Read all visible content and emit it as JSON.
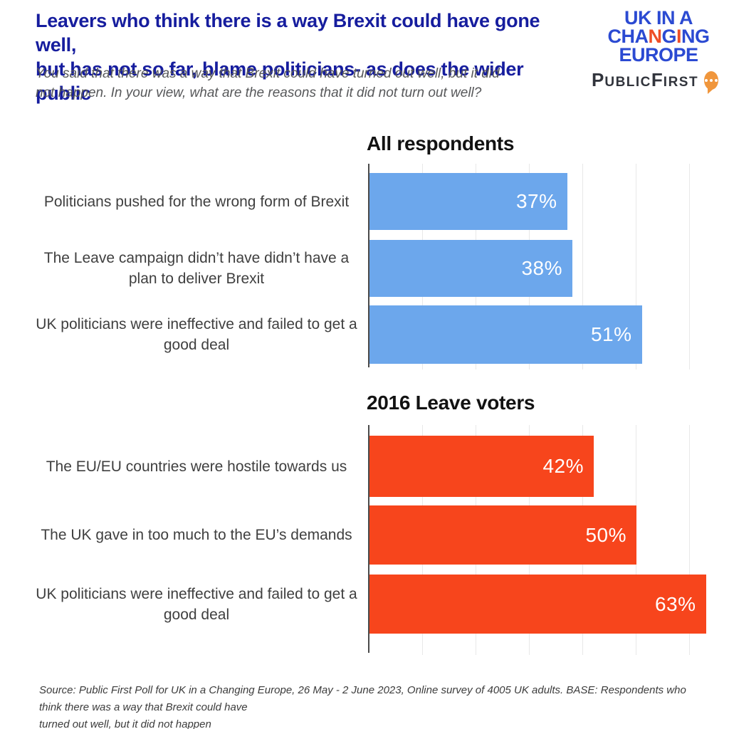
{
  "header": {
    "title_line1": "Leavers who think there is a way Brexit could have gone well,",
    "title_line2": "but has not so far, blame politicians- as does the wider public",
    "subtitle_line1": "You said that there was a way that Brexit could have turned out well, but it did",
    "subtitle_line2": "not happen. In your view, what are the reasons that it did not turn out well?",
    "title_color": "#161d9e"
  },
  "logos": {
    "ukice": {
      "line1": "UK IN A",
      "line2_parts": [
        "CHA",
        "N",
        "G",
        "I",
        "NG"
      ],
      "line3": "EUROPE",
      "blue": "#2b4ad2",
      "orange": "#ee4e27"
    },
    "publicfirst": {
      "parts": [
        "P",
        "UBLIC",
        "F",
        "IRST"
      ],
      "bubble_icon": "speech-bubble-icon",
      "bubble_color": "#f0963c",
      "text_color": "#31343c"
    }
  },
  "chart_data": [
    {
      "type": "bar",
      "orientation": "horizontal",
      "title": "All respondents",
      "categories": [
        "Politicians pushed for the wrong form of Brexit",
        "The Leave campaign didn’t have didn’t have a plan to deliver Brexit",
        "UK politicians were ineffective and failed to get a good deal"
      ],
      "values": [
        37,
        38,
        51
      ],
      "value_labels": [
        "37%",
        "38%",
        "51%"
      ],
      "bar_color": "#6ca7ec",
      "value_label_color": "#ffffff",
      "xlim": [
        0,
        63
      ],
      "gridline_step_percent": 10,
      "grid": true,
      "legend": "none",
      "xlabel": "",
      "ylabel": ""
    },
    {
      "type": "bar",
      "orientation": "horizontal",
      "title": "2016 Leave voters",
      "categories": [
        "The EU/EU countries were hostile towards us",
        "The UK gave in too much to the EU’s demands",
        "UK politicians were ineffective and failed to get a good deal"
      ],
      "values": [
        42,
        50,
        63
      ],
      "value_labels": [
        "42%",
        "50%",
        "63%"
      ],
      "bar_color": "#f7451c",
      "value_label_color": "#ffffff",
      "xlim": [
        0,
        63
      ],
      "gridline_step_percent": 10,
      "grid": true,
      "legend": "none",
      "xlabel": "",
      "ylabel": ""
    }
  ],
  "footer": {
    "source_line1": "Source: Public First Poll for UK in a Changing Europe, 26 May - 2 June 2023, Online survey of 4005 UK adults. BASE: Respondents who think there was a way that Brexit could have",
    "source_line2": "turned out well, but it did not happen"
  }
}
